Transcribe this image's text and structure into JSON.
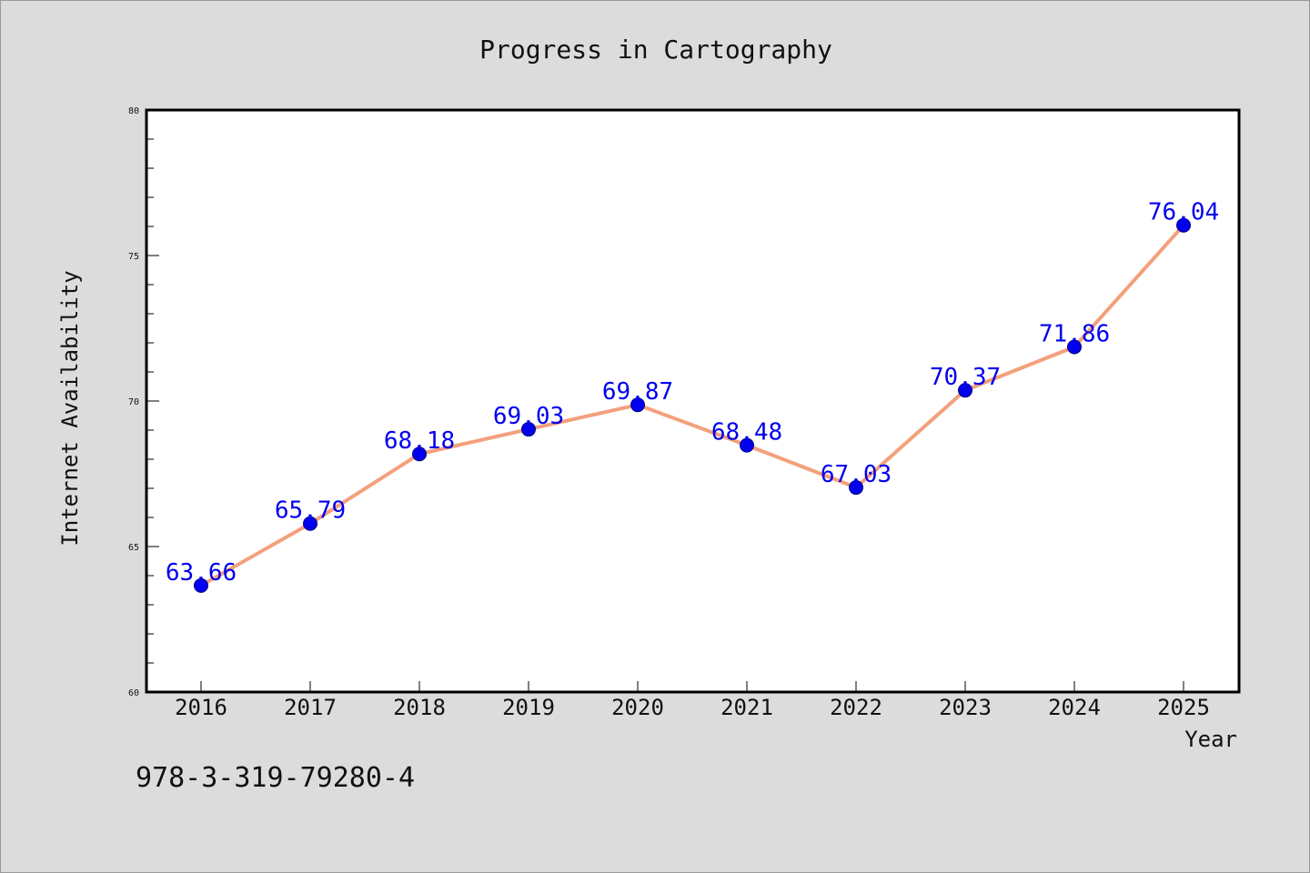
{
  "chart_data": {
    "type": "line",
    "title": "Progress in Cartography",
    "xlabel": "Year",
    "ylabel": "Internet Availability",
    "x": [
      "2016",
      "2017",
      "2018",
      "2019",
      "2020",
      "2021",
      "2022",
      "2023",
      "2024",
      "2025"
    ],
    "series": [
      {
        "values": [
          63.66,
          65.79,
          68.18,
          69.03,
          69.87,
          68.48,
          67.03,
          70.37,
          71.86,
          76.04
        ],
        "labels": [
          "63.66",
          "65.79",
          "68.18",
          "69.03",
          "69.87",
          "68.48",
          "67.03",
          "70.37",
          "71.86",
          "76.04"
        ]
      }
    ],
    "ylim": [
      60,
      80
    ],
    "yticks": [
      "60",
      "65",
      "70",
      "75",
      "80"
    ],
    "grid": false,
    "colors": {
      "line": "#f4a07c",
      "marker": "#0000ee",
      "label": "#0000ee",
      "background": "#dcdcdc",
      "plot_background": "#ffffff"
    }
  },
  "footer": {
    "isbn": "978-3-319-79280-4"
  }
}
